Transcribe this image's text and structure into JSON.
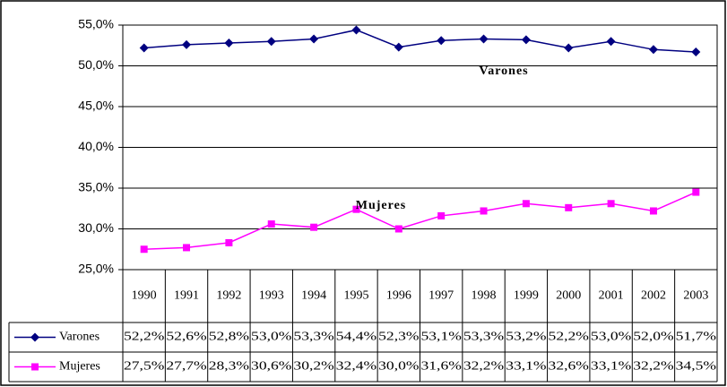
{
  "chart_data": {
    "type": "line",
    "categories": [
      "1990",
      "1991",
      "1992",
      "1993",
      "1994",
      "1995",
      "1996",
      "1997",
      "1998",
      "1999",
      "2000",
      "2001",
      "2002",
      "2003"
    ],
    "series": [
      {
        "name": "Varones",
        "color": "#000080",
        "marker": "diamond",
        "values": [
          52.2,
          52.6,
          52.8,
          53.0,
          53.3,
          54.4,
          52.3,
          53.1,
          53.3,
          53.2,
          52.2,
          53.0,
          52.0,
          51.7
        ],
        "value_labels": [
          "52,2%",
          "52,6%",
          "52,8%",
          "53,0%",
          "53,3%",
          "54,4%",
          "52,3%",
          "53,1%",
          "53,3%",
          "53,2%",
          "52,2%",
          "53,0%",
          "52,0%",
          "51,7%"
        ]
      },
      {
        "name": "Mujeres",
        "color": "#ff00ff",
        "marker": "square",
        "values": [
          27.5,
          27.7,
          28.3,
          30.6,
          30.2,
          32.4,
          30.0,
          31.6,
          32.2,
          33.1,
          32.6,
          33.1,
          32.2,
          34.5
        ],
        "value_labels": [
          "27,5%",
          "27,7%",
          "28,3%",
          "30,6%",
          "30,2%",
          "32,4%",
          "30,0%",
          "31,6%",
          "32,2%",
          "33,1%",
          "32,6%",
          "33,1%",
          "32,2%",
          "34,5%"
        ]
      }
    ],
    "annotations": [
      "Varones",
      "Mujeres"
    ],
    "ylim": [
      25,
      55
    ],
    "yticks": [
      {
        "value": 25,
        "label": "25,0%"
      },
      {
        "value": 30,
        "label": "30,0%"
      },
      {
        "value": 35,
        "label": "35,0%"
      },
      {
        "value": 40,
        "label": "40,0%"
      },
      {
        "value": 45,
        "label": "45,0%"
      },
      {
        "value": 50,
        "label": "50,0%"
      },
      {
        "value": 55,
        "label": "55,0%"
      }
    ],
    "grid": true
  }
}
